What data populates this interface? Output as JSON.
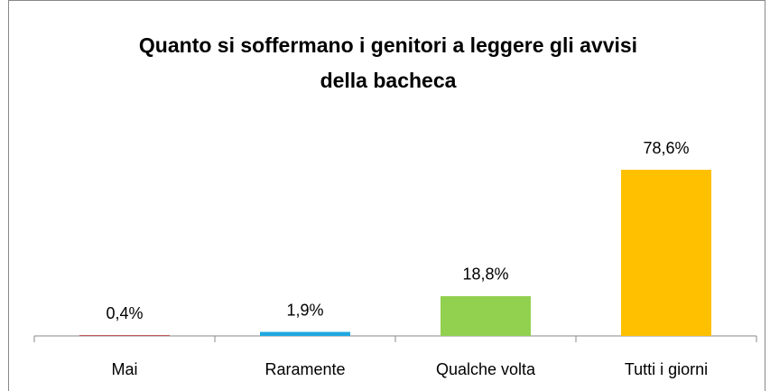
{
  "chart_data": {
    "type": "bar",
    "title": [
      "Quanto si soffermano i genitori a leggere gli avvisi",
      "della bacheca"
    ],
    "categories": [
      "Mai",
      "Raramente",
      "Qualche volta",
      "Tutti i giorni"
    ],
    "values": [
      0.4,
      1.9,
      18.8,
      78.6
    ],
    "value_labels": [
      "0,4%",
      "1,9%",
      "18,8%",
      "78,6%"
    ],
    "colors": [
      "#c0504d",
      "#1fa8e0",
      "#92d050",
      "#ffc000"
    ]
  }
}
